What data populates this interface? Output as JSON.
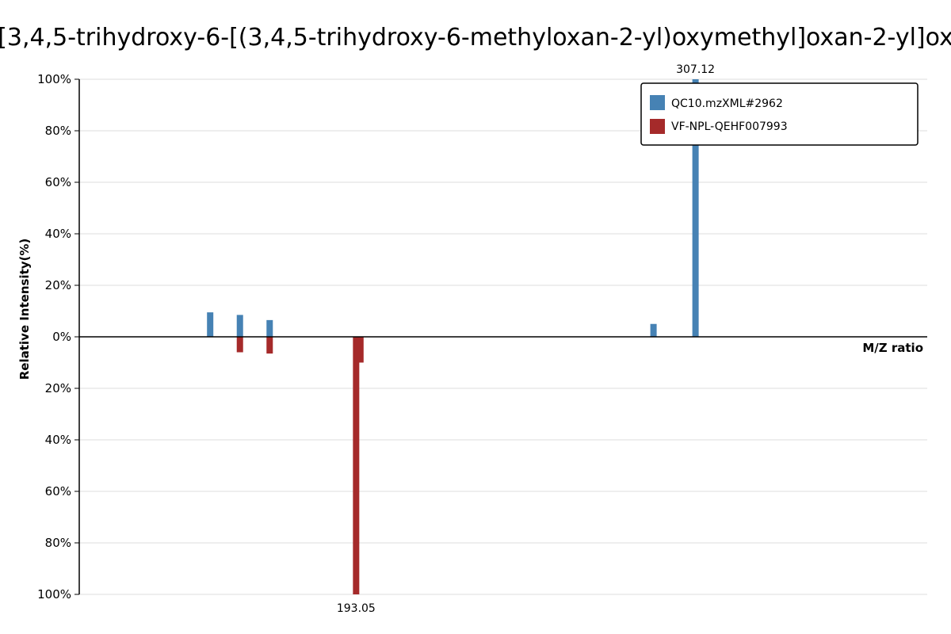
{
  "chart_data": {
    "type": "bar",
    "title": "[3,4,5-trihydroxy-6-[(3,4,5-trihydroxy-6-methyloxan-2-yl)oxymethyl]oxan-2-yl]ox",
    "xlabel": "M/Z ratio",
    "ylabel": "Relative Intensity(%)",
    "xlim": [
      100,
      385
    ],
    "ylim_top": [
      0,
      100
    ],
    "ylim_bottom": [
      0,
      100
    ],
    "yticks_top": [
      "0%",
      "20%",
      "40%",
      "60%",
      "80%",
      "100%"
    ],
    "yticks_bottom": [
      "20%",
      "40%",
      "60%",
      "80%",
      "100%"
    ],
    "grid": true,
    "legend_position": "top-right",
    "series": [
      {
        "name": "QC10.mzXML#2962",
        "color": "#4682b4",
        "direction": "up",
        "peaks": [
          {
            "mz": 144.0,
            "intensity": 9.5
          },
          {
            "mz": 154.0,
            "intensity": 8.5
          },
          {
            "mz": 164.0,
            "intensity": 6.5
          },
          {
            "mz": 293.0,
            "intensity": 5.0
          },
          {
            "mz": 307.12,
            "intensity": 100,
            "label": "307.12"
          }
        ]
      },
      {
        "name": "VF-NPL-QEHF007993",
        "color": "#a52a2a",
        "direction": "down",
        "peaks": [
          {
            "mz": 154.0,
            "intensity": 6.0
          },
          {
            "mz": 164.0,
            "intensity": 6.5
          },
          {
            "mz": 193.05,
            "intensity": 100,
            "label": "193.05"
          },
          {
            "mz": 194.5,
            "intensity": 10.0
          }
        ]
      }
    ]
  }
}
